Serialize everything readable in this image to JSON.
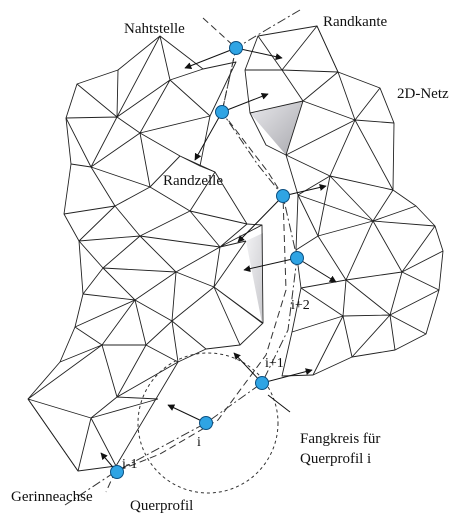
{
  "labels": {
    "nahtstelle": "Nahtstelle",
    "randkante": "Randkante",
    "netz2d": "2D-Netz",
    "randzelle": "Randzelle",
    "i_plus_2": "i+2",
    "i_plus_1": "i+1",
    "i": "i",
    "i_minus_1": "i-1",
    "fangkreis_line1": "Fangkreis für",
    "fangkreis_line2": "Querprofil i",
    "gerinneachse": "Gerinneachse",
    "querprofil": "Querprofil"
  },
  "colors": {
    "node_fill": "#2fa4e4",
    "shaded_cell_dark": "#9a9a9a",
    "shaded_cell_light": "#d4d4d4"
  }
}
